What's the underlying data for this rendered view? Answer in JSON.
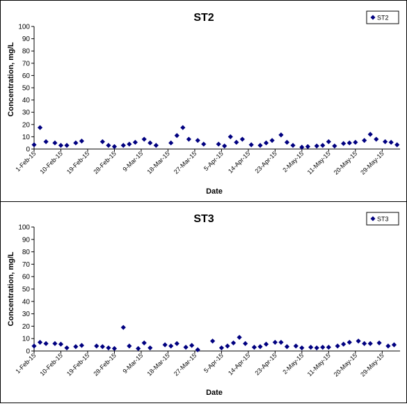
{
  "chart_data": [
    {
      "type": "scatter",
      "title": "ST2",
      "xlabel": "Date",
      "ylabel": "Concentration, mg/L",
      "ylim": [
        0,
        100
      ],
      "yticks": [
        0,
        10,
        20,
        30,
        40,
        50,
        60,
        70,
        80,
        90,
        100
      ],
      "xlim": [
        "2015-02-01",
        "2015-05-31"
      ],
      "x_tick_labels": [
        "1-Feb-15",
        "10-Feb-15",
        "19-Feb-15",
        "28-Feb-15",
        "9-Mar-15",
        "18-Mar-15",
        "27-Mar-15",
        "5-Apr-15",
        "14-Apr-15",
        "23-Apr-15",
        "2-May-15",
        "11-May-15",
        "20-May-15",
        "29-May-15"
      ],
      "x_tick_dates": [
        "2015-02-01",
        "2015-02-10",
        "2015-02-19",
        "2015-02-28",
        "2015-03-09",
        "2015-03-18",
        "2015-03-27",
        "2015-04-05",
        "2015-04-14",
        "2015-04-23",
        "2015-05-02",
        "2015-05-11",
        "2015-05-20",
        "2015-05-29"
      ],
      "grid": false,
      "legend_position": "top-right",
      "marker": "diamond",
      "series_color": "#000080",
      "series": [
        {
          "name": "ST2",
          "points": [
            {
              "x": "2015-02-01",
              "y": 3.5
            },
            {
              "x": "2015-02-03",
              "y": 17.5
            },
            {
              "x": "2015-02-05",
              "y": 6
            },
            {
              "x": "2015-02-08",
              "y": 5
            },
            {
              "x": "2015-02-10",
              "y": 3
            },
            {
              "x": "2015-02-12",
              "y": 3
            },
            {
              "x": "2015-02-15",
              "y": 5
            },
            {
              "x": "2015-02-17",
              "y": 6.5
            },
            {
              "x": "2015-02-24",
              "y": 6
            },
            {
              "x": "2015-02-26",
              "y": 3
            },
            {
              "x": "2015-02-28",
              "y": 2
            },
            {
              "x": "2015-03-03",
              "y": 3
            },
            {
              "x": "2015-03-05",
              "y": 4
            },
            {
              "x": "2015-03-07",
              "y": 5.5
            },
            {
              "x": "2015-03-10",
              "y": 8
            },
            {
              "x": "2015-03-12",
              "y": 5
            },
            {
              "x": "2015-03-14",
              "y": 3
            },
            {
              "x": "2015-03-19",
              "y": 5
            },
            {
              "x": "2015-03-21",
              "y": 11
            },
            {
              "x": "2015-03-23",
              "y": 17.5
            },
            {
              "x": "2015-03-25",
              "y": 8
            },
            {
              "x": "2015-03-28",
              "y": 7
            },
            {
              "x": "2015-03-30",
              "y": 4
            },
            {
              "x": "2015-04-04",
              "y": 4
            },
            {
              "x": "2015-04-06",
              "y": 2.5
            },
            {
              "x": "2015-04-08",
              "y": 10
            },
            {
              "x": "2015-04-10",
              "y": 5.5
            },
            {
              "x": "2015-04-12",
              "y": 8
            },
            {
              "x": "2015-04-15",
              "y": 3.5
            },
            {
              "x": "2015-04-18",
              "y": 3
            },
            {
              "x": "2015-04-20",
              "y": 5
            },
            {
              "x": "2015-04-22",
              "y": 7
            },
            {
              "x": "2015-04-25",
              "y": 11.5
            },
            {
              "x": "2015-04-27",
              "y": 5.5
            },
            {
              "x": "2015-04-29",
              "y": 3
            },
            {
              "x": "2015-05-02",
              "y": 1.5
            },
            {
              "x": "2015-05-04",
              "y": 2
            },
            {
              "x": "2015-05-07",
              "y": 2.5
            },
            {
              "x": "2015-05-09",
              "y": 3
            },
            {
              "x": "2015-05-11",
              "y": 6
            },
            {
              "x": "2015-05-13",
              "y": 2.5
            },
            {
              "x": "2015-05-16",
              "y": 4.5
            },
            {
              "x": "2015-05-18",
              "y": 5
            },
            {
              "x": "2015-05-20",
              "y": 5.5
            },
            {
              "x": "2015-05-23",
              "y": 7
            },
            {
              "x": "2015-05-25",
              "y": 12
            },
            {
              "x": "2015-05-27",
              "y": 8
            },
            {
              "x": "2015-05-30",
              "y": 6
            },
            {
              "x": "2015-06-01",
              "y": 5.5
            },
            {
              "x": "2015-06-03",
              "y": 3.5
            }
          ]
        }
      ]
    },
    {
      "type": "scatter",
      "title": "ST3",
      "xlabel": "Date",
      "ylabel": "Concentration, mg/L",
      "ylim": [
        0,
        100
      ],
      "yticks": [
        0,
        10,
        20,
        30,
        40,
        50,
        60,
        70,
        80,
        90,
        100
      ],
      "xlim": [
        "2015-02-01",
        "2015-05-31"
      ],
      "x_tick_labels": [
        "1-Feb-15",
        "10-Feb-15",
        "19-Feb-15",
        "28-Feb-15",
        "9-Mar-15",
        "18-Mar-15",
        "27-Mar-15",
        "5-Apr-15",
        "14-Apr-15",
        "23-Apr-15",
        "2-May-15",
        "11-May-15",
        "20-May-15",
        "29-May-15"
      ],
      "x_tick_dates": [
        "2015-02-01",
        "2015-02-10",
        "2015-02-19",
        "2015-02-28",
        "2015-03-09",
        "2015-03-18",
        "2015-03-27",
        "2015-04-05",
        "2015-04-14",
        "2015-04-23",
        "2015-05-02",
        "2015-05-11",
        "2015-05-20",
        "2015-05-29"
      ],
      "grid": false,
      "legend_position": "top-right",
      "marker": "diamond",
      "series_color": "#000080",
      "series": [
        {
          "name": "ST3",
          "points": [
            {
              "x": "2015-02-01",
              "y": 4
            },
            {
              "x": "2015-02-03",
              "y": 7
            },
            {
              "x": "2015-02-05",
              "y": 6
            },
            {
              "x": "2015-02-08",
              "y": 6
            },
            {
              "x": "2015-02-10",
              "y": 5.5
            },
            {
              "x": "2015-02-12",
              "y": 2.5
            },
            {
              "x": "2015-02-15",
              "y": 3.5
            },
            {
              "x": "2015-02-17",
              "y": 4.5
            },
            {
              "x": "2015-02-22",
              "y": 4
            },
            {
              "x": "2015-02-24",
              "y": 3.5
            },
            {
              "x": "2015-02-26",
              "y": 2.5
            },
            {
              "x": "2015-02-28",
              "y": 2
            },
            {
              "x": "2015-03-03",
              "y": 19
            },
            {
              "x": "2015-03-05",
              "y": 4
            },
            {
              "x": "2015-03-08",
              "y": 2
            },
            {
              "x": "2015-03-10",
              "y": 6.5
            },
            {
              "x": "2015-03-12",
              "y": 2.5
            },
            {
              "x": "2015-03-17",
              "y": 5
            },
            {
              "x": "2015-03-19",
              "y": 4
            },
            {
              "x": "2015-03-21",
              "y": 6
            },
            {
              "x": "2015-03-24",
              "y": 3
            },
            {
              "x": "2015-03-26",
              "y": 4.5
            },
            {
              "x": "2015-03-28",
              "y": 1
            },
            {
              "x": "2015-04-02",
              "y": 8
            },
            {
              "x": "2015-04-05",
              "y": 2.5
            },
            {
              "x": "2015-04-07",
              "y": 4
            },
            {
              "x": "2015-04-09",
              "y": 6.5
            },
            {
              "x": "2015-04-11",
              "y": 11
            },
            {
              "x": "2015-04-13",
              "y": 6
            },
            {
              "x": "2015-04-16",
              "y": 3
            },
            {
              "x": "2015-04-18",
              "y": 3.5
            },
            {
              "x": "2015-04-20",
              "y": 5.5
            },
            {
              "x": "2015-04-23",
              "y": 7
            },
            {
              "x": "2015-04-25",
              "y": 7
            },
            {
              "x": "2015-04-27",
              "y": 3.5
            },
            {
              "x": "2015-04-30",
              "y": 4
            },
            {
              "x": "2015-05-02",
              "y": 2.5
            },
            {
              "x": "2015-05-05",
              "y": 3
            },
            {
              "x": "2015-05-07",
              "y": 2.5
            },
            {
              "x": "2015-05-09",
              "y": 3
            },
            {
              "x": "2015-05-11",
              "y": 3
            },
            {
              "x": "2015-05-14",
              "y": 4
            },
            {
              "x": "2015-05-16",
              "y": 5.5
            },
            {
              "x": "2015-05-18",
              "y": 7
            },
            {
              "x": "2015-05-21",
              "y": 8
            },
            {
              "x": "2015-05-23",
              "y": 6
            },
            {
              "x": "2015-05-25",
              "y": 6
            },
            {
              "x": "2015-05-28",
              "y": 6.5
            },
            {
              "x": "2015-05-31",
              "y": 4
            },
            {
              "x": "2015-06-02",
              "y": 5
            }
          ]
        }
      ]
    }
  ]
}
